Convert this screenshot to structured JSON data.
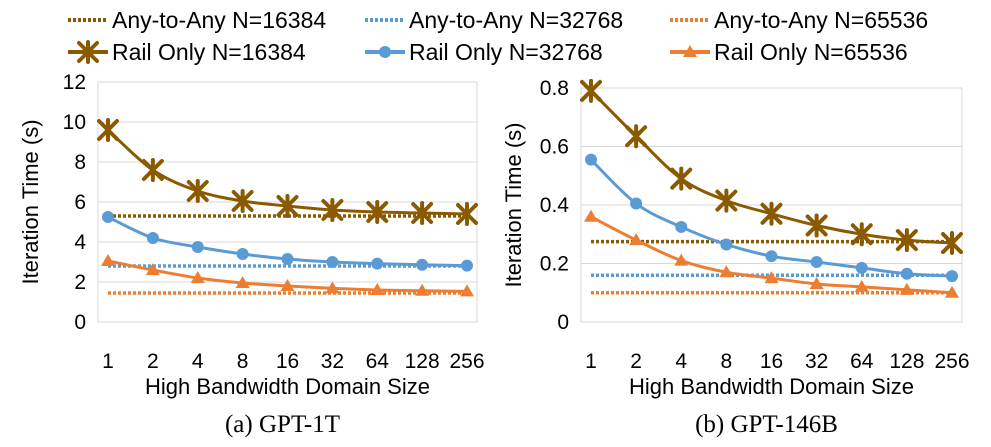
{
  "legend": {
    "items": [
      {
        "label": "Any-to-Any N=16384",
        "style": "dotted",
        "color": "#8B5A00"
      },
      {
        "label": "Any-to-Any N=32768",
        "style": "dotted",
        "color": "#5B9BD5"
      },
      {
        "label": "Any-to-Any N=65536",
        "style": "dotted",
        "color": "#ED7D31"
      },
      {
        "label": "Rail Only N=16384",
        "style": "solid",
        "marker": "asterisk",
        "color": "#8B5A00"
      },
      {
        "label": "Rail Only N=32768",
        "style": "solid",
        "marker": "circle",
        "color": "#5B9BD5"
      },
      {
        "label": "Rail Only N=65536",
        "style": "solid",
        "marker": "triangle",
        "color": "#ED7D31"
      }
    ]
  },
  "chart_data": [
    {
      "type": "line",
      "caption": "(a) GPT-1T",
      "xlabel": "High Bandwidth Domain Size",
      "ylabel": "Iteration Time (s)",
      "categories": [
        "1",
        "2",
        "4",
        "8",
        "16",
        "32",
        "64",
        "128",
        "256"
      ],
      "ylim": [
        0,
        12
      ],
      "yticks": [
        "0",
        "2",
        "4",
        "6",
        "8",
        "10",
        "12"
      ],
      "grid": "horizontal",
      "series": [
        {
          "name": "Any-to-Any N=16384",
          "color": "#8B5A00",
          "style": "dotted",
          "values": [
            5.3,
            5.3,
            5.3,
            5.3,
            5.3,
            5.3,
            5.3,
            5.3,
            5.3
          ]
        },
        {
          "name": "Any-to-Any N=32768",
          "color": "#5B9BD5",
          "style": "dotted",
          "values": [
            2.8,
            2.8,
            2.8,
            2.8,
            2.8,
            2.8,
            2.8,
            2.8,
            2.8
          ]
        },
        {
          "name": "Any-to-Any N=65536",
          "color": "#ED7D31",
          "style": "dotted",
          "values": [
            1.45,
            1.45,
            1.45,
            1.45,
            1.45,
            1.45,
            1.45,
            1.45,
            1.45
          ]
        },
        {
          "name": "Rail Only N=16384",
          "color": "#8B5A00",
          "marker": "asterisk",
          "values": [
            9.6,
            7.6,
            6.55,
            6.05,
            5.8,
            5.6,
            5.5,
            5.45,
            5.4
          ]
        },
        {
          "name": "Rail Only N=32768",
          "color": "#5B9BD5",
          "marker": "circle",
          "values": [
            5.25,
            4.2,
            3.75,
            3.4,
            3.15,
            3.0,
            2.92,
            2.86,
            2.82
          ]
        },
        {
          "name": "Rail Only N=65536",
          "color": "#ED7D31",
          "marker": "triangle",
          "values": [
            3.05,
            2.6,
            2.2,
            1.95,
            1.8,
            1.68,
            1.6,
            1.56,
            1.53
          ]
        }
      ]
    },
    {
      "type": "line",
      "caption": "(b) GPT-146B",
      "xlabel": "High Bandwidth Domain Size",
      "ylabel": "Iteration Time (s)",
      "categories": [
        "1",
        "2",
        "4",
        "8",
        "16",
        "32",
        "64",
        "128",
        "256"
      ],
      "ylim": [
        0,
        0.8
      ],
      "yticks": [
        "0",
        "0.2",
        "0.4",
        "0.6",
        "0.8"
      ],
      "grid": "horizontal",
      "series": [
        {
          "name": "Any-to-Any N=16384",
          "color": "#8B5A00",
          "style": "dotted",
          "values": [
            0.275,
            0.275,
            0.275,
            0.275,
            0.275,
            0.275,
            0.275,
            0.275,
            0.275
          ]
        },
        {
          "name": "Any-to-Any N=32768",
          "color": "#5B9BD5",
          "style": "dotted",
          "values": [
            0.16,
            0.16,
            0.16,
            0.16,
            0.16,
            0.16,
            0.16,
            0.16,
            0.16
          ]
        },
        {
          "name": "Any-to-Any N=65536",
          "color": "#ED7D31",
          "style": "dotted",
          "values": [
            0.1,
            0.1,
            0.1,
            0.1,
            0.1,
            0.1,
            0.1,
            0.1,
            0.1
          ]
        },
        {
          "name": "Rail Only N=16384",
          "color": "#8B5A00",
          "marker": "asterisk",
          "values": [
            0.79,
            0.635,
            0.49,
            0.415,
            0.37,
            0.33,
            0.3,
            0.28,
            0.27
          ]
        },
        {
          "name": "Rail Only N=32768",
          "color": "#5B9BD5",
          "marker": "circle",
          "values": [
            0.555,
            0.405,
            0.325,
            0.265,
            0.225,
            0.205,
            0.185,
            0.165,
            0.157
          ]
        },
        {
          "name": "Rail Only N=65536",
          "color": "#ED7D31",
          "marker": "triangle",
          "values": [
            0.36,
            0.28,
            0.21,
            0.17,
            0.15,
            0.13,
            0.12,
            0.11,
            0.1
          ]
        }
      ]
    }
  ]
}
